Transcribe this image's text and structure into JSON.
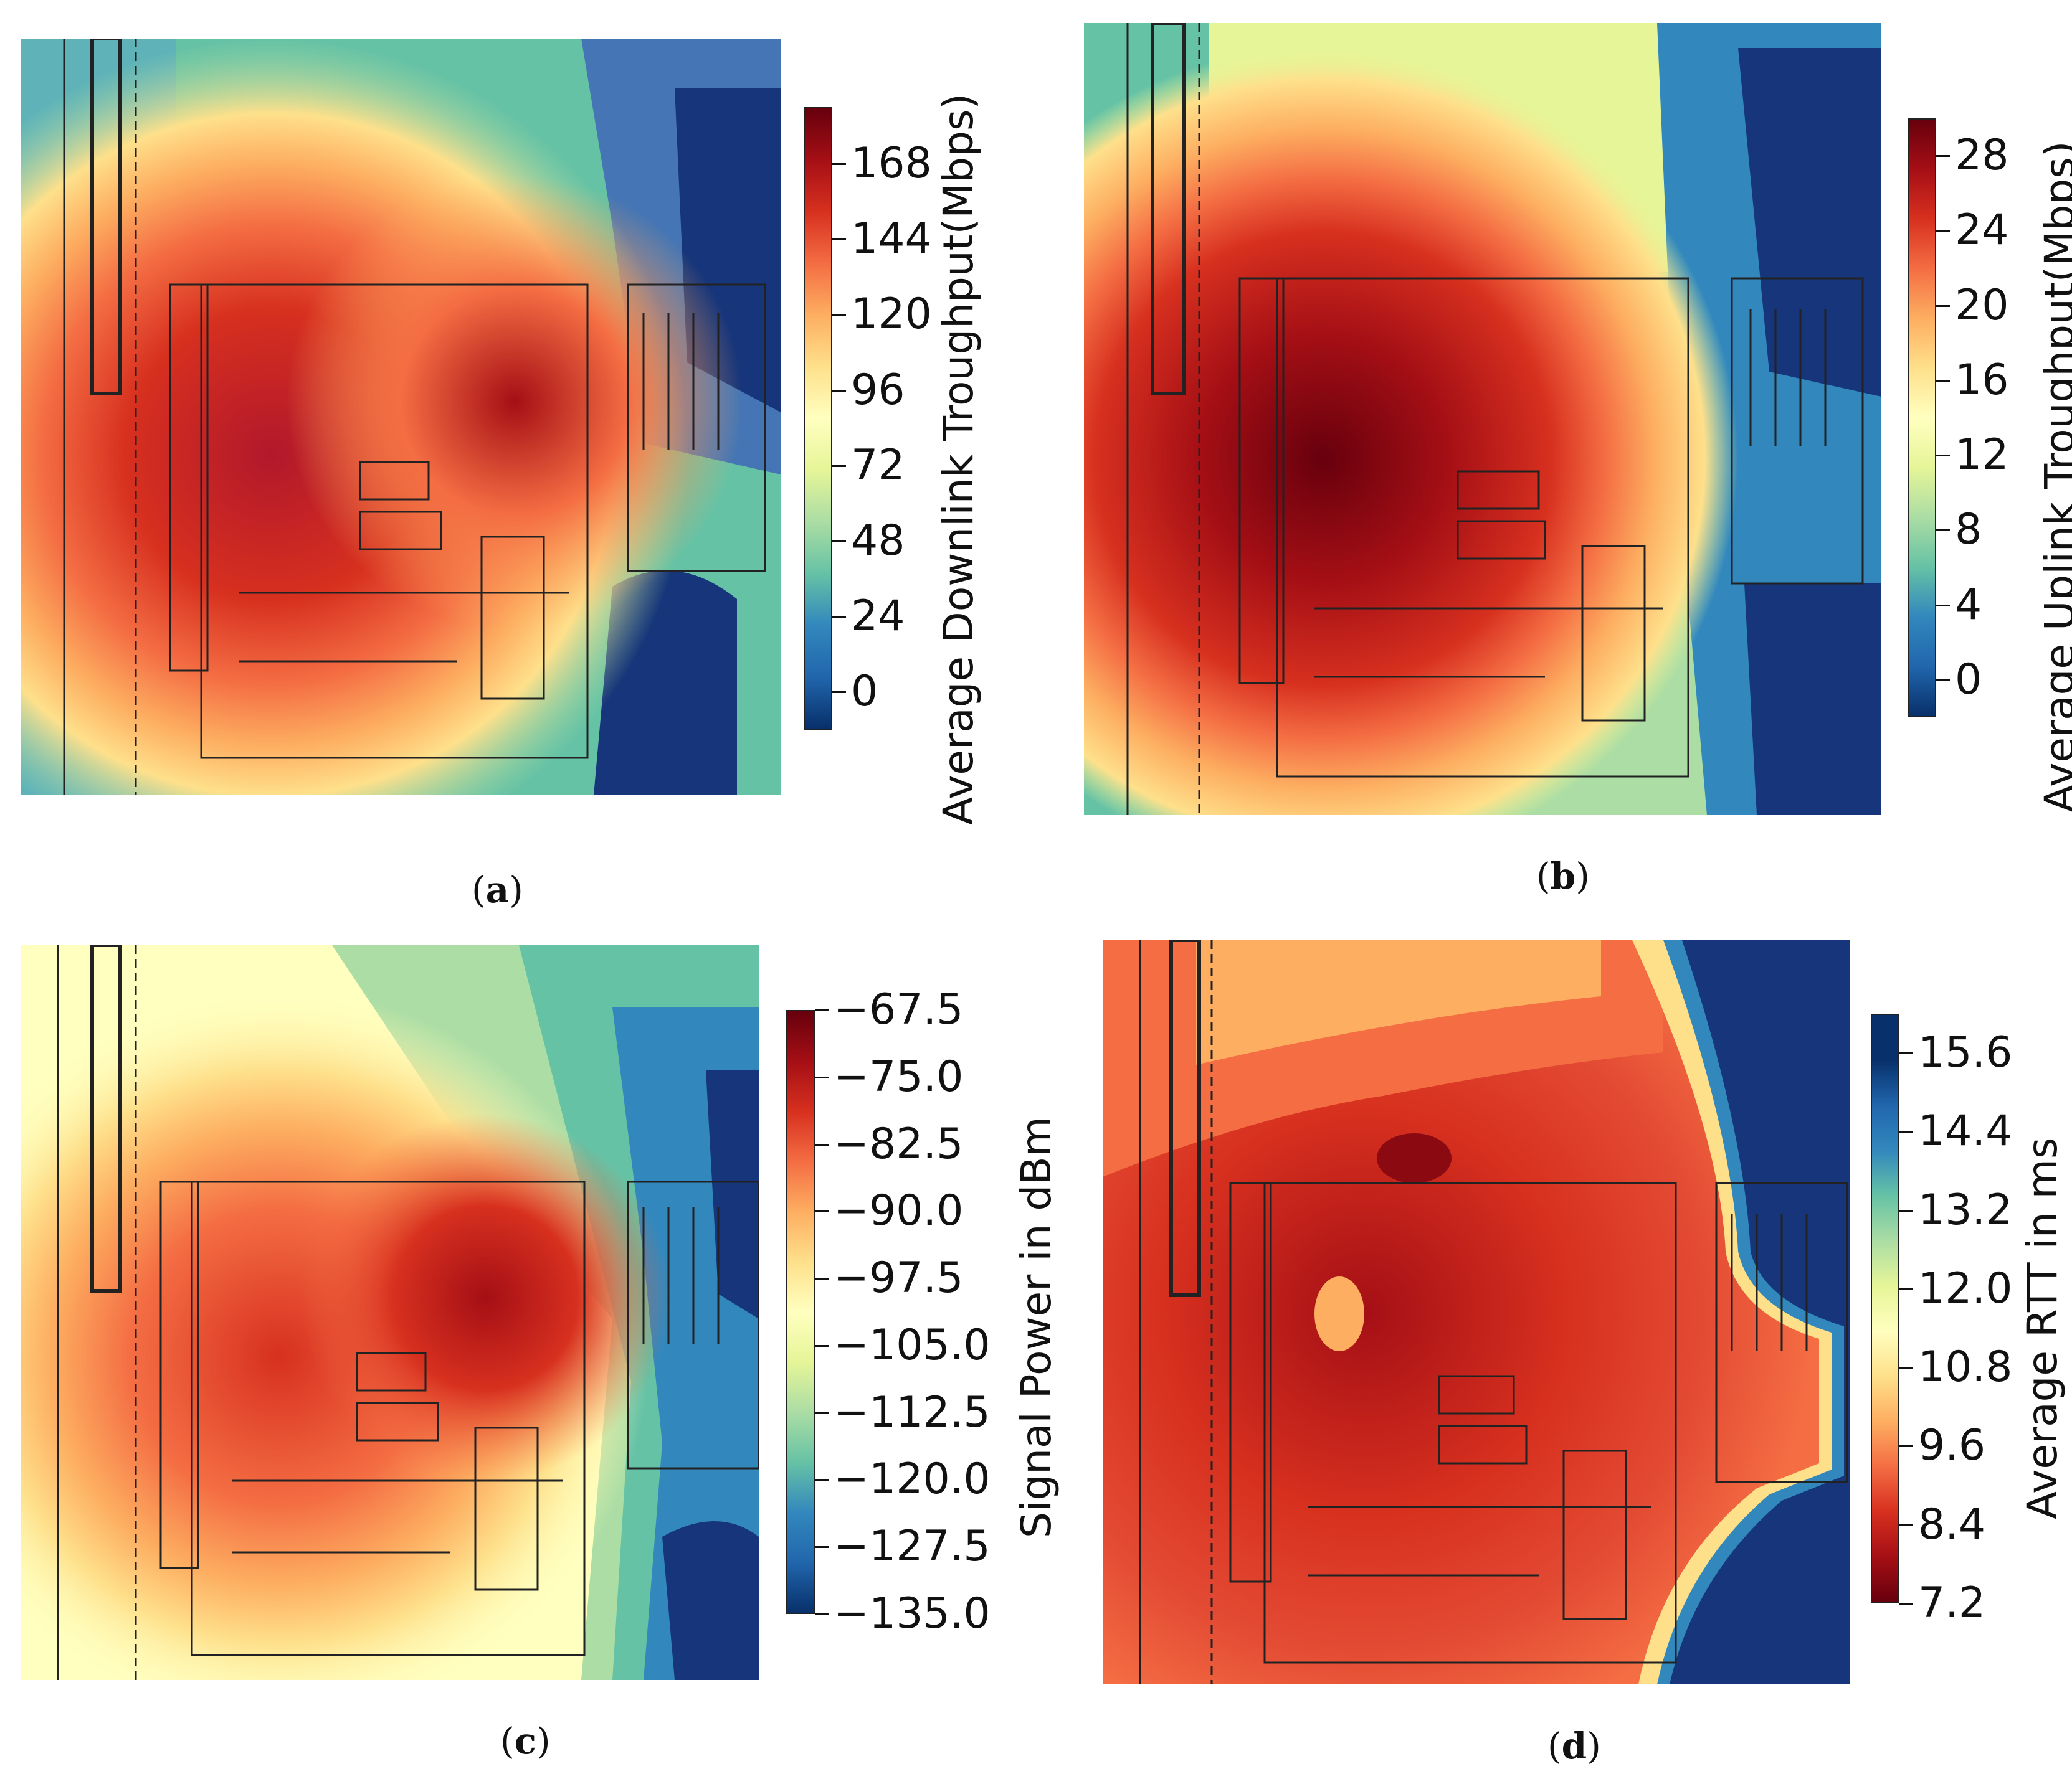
{
  "colors": {
    "scale": [
      "#67000d",
      "#a50f15",
      "#d7301f",
      "#f16913",
      "#fdae61",
      "#fee08b",
      "#ffffbf",
      "#e6f598",
      "#abdda4",
      "#66c2a5",
      "#3288bd",
      "#2166ac",
      "#08306b"
    ]
  },
  "chart_data": [
    {
      "id": "a",
      "type": "heatmap",
      "caption": "a",
      "colorbar": {
        "label": "Average Downlink Troughput(Mbps)",
        "ticks": [
          "168",
          "144",
          "120",
          "96",
          "72",
          "48",
          "24",
          "0"
        ],
        "tick_values": [
          168,
          144,
          120,
          96,
          72,
          48,
          24,
          0
        ],
        "range": [
          -12,
          186
        ]
      },
      "access_points": 3,
      "hotspots": "high values inside the building, low values at the right and bottom-right"
    },
    {
      "id": "b",
      "type": "heatmap",
      "caption": "b",
      "colorbar": {
        "label": "Average Uplink Troughput(Mbps)",
        "ticks": [
          "28",
          "24",
          "20",
          "16",
          "12",
          "8",
          "4",
          "0"
        ],
        "tick_values": [
          28,
          24,
          20,
          16,
          12,
          8,
          4,
          0
        ],
        "range": [
          -2,
          30
        ]
      },
      "access_points": 3
    },
    {
      "id": "c",
      "type": "heatmap",
      "caption": "c",
      "colorbar": {
        "label": "Signal Power in dBm",
        "ticks": [
          "−67.5",
          "−75.0",
          "−82.5",
          "−90.0",
          "−97.5",
          "−105.0",
          "−112.5",
          "−120.0",
          "−127.5",
          "−135.0"
        ],
        "tick_values": [
          -67.5,
          -75.0,
          -82.5,
          -90.0,
          -97.5,
          -105.0,
          -112.5,
          -120.0,
          -127.5,
          -135.0
        ],
        "range": [
          -135,
          -67.5
        ]
      },
      "access_points": 3
    },
    {
      "id": "d",
      "type": "heatmap",
      "caption": "d",
      "colorbar": {
        "label": "Average RTT in ms",
        "ticks": [
          "15.6",
          "14.4",
          "13.2",
          "12.0",
          "10.8",
          "9.6",
          "8.4",
          "7.2"
        ],
        "tick_values": [
          15.6,
          14.4,
          13.2,
          12.0,
          10.8,
          9.6,
          8.4,
          7.2
        ],
        "range": [
          7.2,
          16.2
        ],
        "reversed": true
      },
      "access_points": 3
    }
  ]
}
